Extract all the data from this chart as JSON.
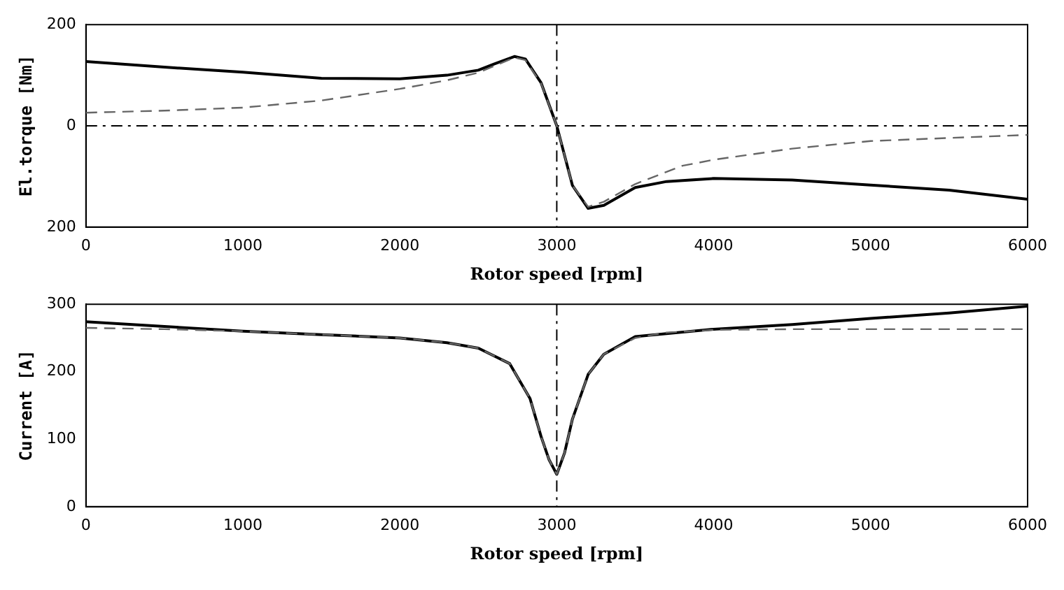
{
  "chart_data": [
    {
      "type": "line",
      "xlabel": "Rotor speed [rpm]",
      "ylabel": "El.torque [Nm]",
      "xlim": [
        0,
        6000
      ],
      "xticks": [
        0,
        1000,
        2000,
        3000,
        4000,
        5000,
        6000
      ],
      "ylim": [
        -200,
        200
      ],
      "yticks": [
        {
          "value": -200,
          "label": "200"
        },
        0,
        200
      ],
      "grid": false,
      "legend": false,
      "marker": "none",
      "series": [
        {
          "color": "#000000",
          "line_style": "solid",
          "x": [
            0,
            500,
            1000,
            1500,
            2000,
            2300,
            2500,
            2600,
            2730,
            2800,
            2900,
            3000,
            3100,
            3200,
            3300,
            3500,
            3700,
            4000,
            4500,
            5000,
            5500,
            6000
          ],
          "values": [
            127,
            116,
            106,
            94,
            93,
            100,
            110,
            122,
            137,
            132,
            85,
            0,
            -118,
            -163,
            -157,
            -122,
            -110,
            -104,
            -107,
            -117,
            -127,
            -145
          ]
        },
        {
          "color": "#666666",
          "line_style": "dashed",
          "x": [
            0,
            500,
            1000,
            1500,
            2000,
            2300,
            2500,
            2600,
            2730,
            2800,
            2900,
            3000,
            3100,
            3200,
            3300,
            3500,
            3800,
            4000,
            4500,
            5000,
            5500,
            6000
          ],
          "values": [
            26,
            30,
            36,
            50,
            73,
            90,
            105,
            118,
            135,
            130,
            84,
            0,
            -118,
            -160,
            -150,
            -115,
            -79,
            -67,
            -45,
            -30,
            -24,
            -18
          ]
        }
      ],
      "ref_lines": [
        {
          "axis": "x",
          "value": 3000,
          "line_style": "dashdot"
        },
        {
          "axis": "y",
          "value": 0,
          "line_style": "dashdot"
        }
      ]
    },
    {
      "type": "line",
      "xlabel": "Rotor speed [rpm]",
      "ylabel": "Current [A]",
      "xlim": [
        0,
        6000
      ],
      "xticks": [
        0,
        1000,
        2000,
        3000,
        4000,
        5000,
        6000
      ],
      "ylim": [
        0,
        300
      ],
      "yticks": [
        0,
        100,
        200,
        300
      ],
      "grid": false,
      "legend": false,
      "marker": "none",
      "series": [
        {
          "color": "#000000",
          "line_style": "solid",
          "x": [
            0,
            500,
            1000,
            1500,
            2000,
            2300,
            2500,
            2700,
            2830,
            2900,
            2950,
            3000,
            3050,
            3100,
            3200,
            3300,
            3500,
            4000,
            4500,
            5000,
            5500,
            6000
          ],
          "values": [
            274,
            267,
            260,
            255,
            250,
            243,
            235,
            212,
            160,
            104,
            70,
            48,
            80,
            130,
            196,
            226,
            252,
            263,
            270,
            279,
            287,
            297
          ]
        },
        {
          "color": "#666666",
          "line_style": "dashed",
          "x": [
            0,
            500,
            1000,
            1500,
            2000,
            2300,
            2500,
            2700,
            2830,
            2900,
            2950,
            3000,
            3050,
            3100,
            3200,
            3300,
            3500,
            3700,
            4000,
            4500,
            5000,
            5500,
            6000
          ],
          "values": [
            265,
            263,
            260,
            255,
            250,
            243,
            235,
            212,
            160,
            104,
            70,
            48,
            80,
            130,
            196,
            226,
            250,
            258,
            262,
            263,
            263,
            263,
            263
          ]
        }
      ],
      "ref_lines": [
        {
          "axis": "x",
          "value": 3000,
          "line_style": "dashdot"
        }
      ]
    }
  ]
}
